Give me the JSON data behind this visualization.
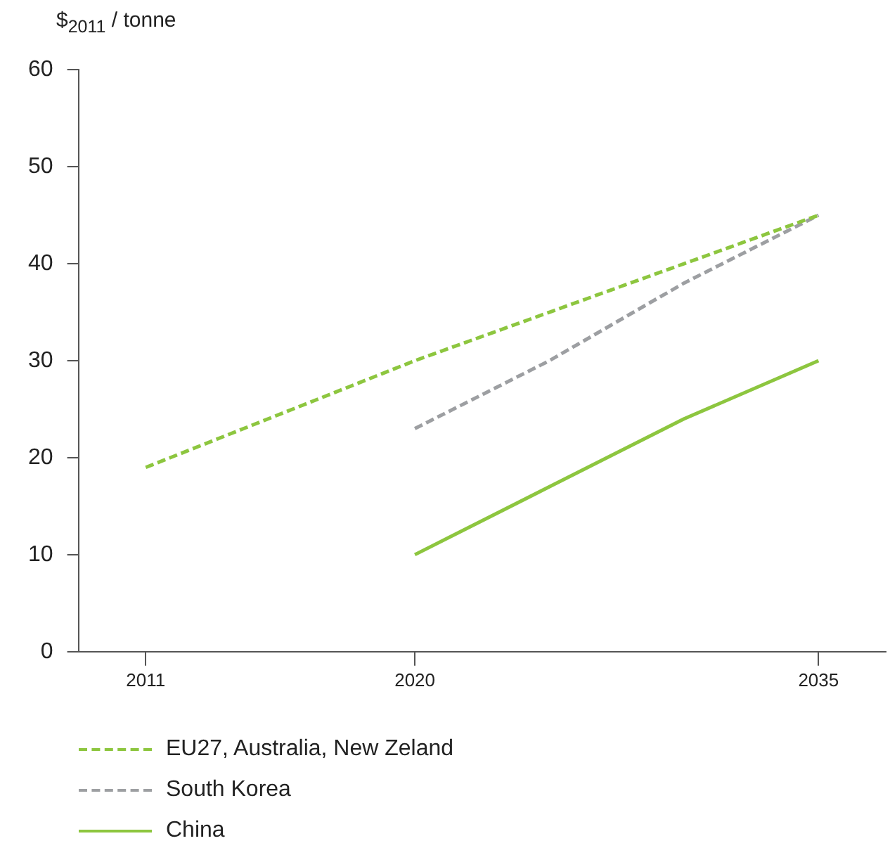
{
  "chart_data": {
    "type": "line",
    "ylabel": "$$_{2011}$ / tonne",
    "categories": [
      "2011",
      null,
      "2020",
      null,
      null,
      "2035"
    ],
    "series": [
      {
        "name": "EU27, Australia, New Zeland",
        "color": "#8dc63f",
        "line_style": "dashed",
        "values": [
          19,
          24.5,
          30,
          35,
          40,
          45
        ]
      },
      {
        "name": "South Korea",
        "color": "#9d9fa2",
        "line_style": "dashed",
        "values": [
          null,
          null,
          23,
          30,
          38,
          45
        ]
      },
      {
        "name": "China",
        "color": "#8dc63f",
        "line_style": "solid",
        "values": [
          null,
          null,
          10,
          17,
          24,
          30
        ]
      }
    ],
    "ylim": [
      0,
      60
    ],
    "yticks": [
      0,
      10,
      20,
      30,
      40,
      50,
      60
    ],
    "grid": false,
    "legend": "bottom",
    "marker": "none"
  }
}
